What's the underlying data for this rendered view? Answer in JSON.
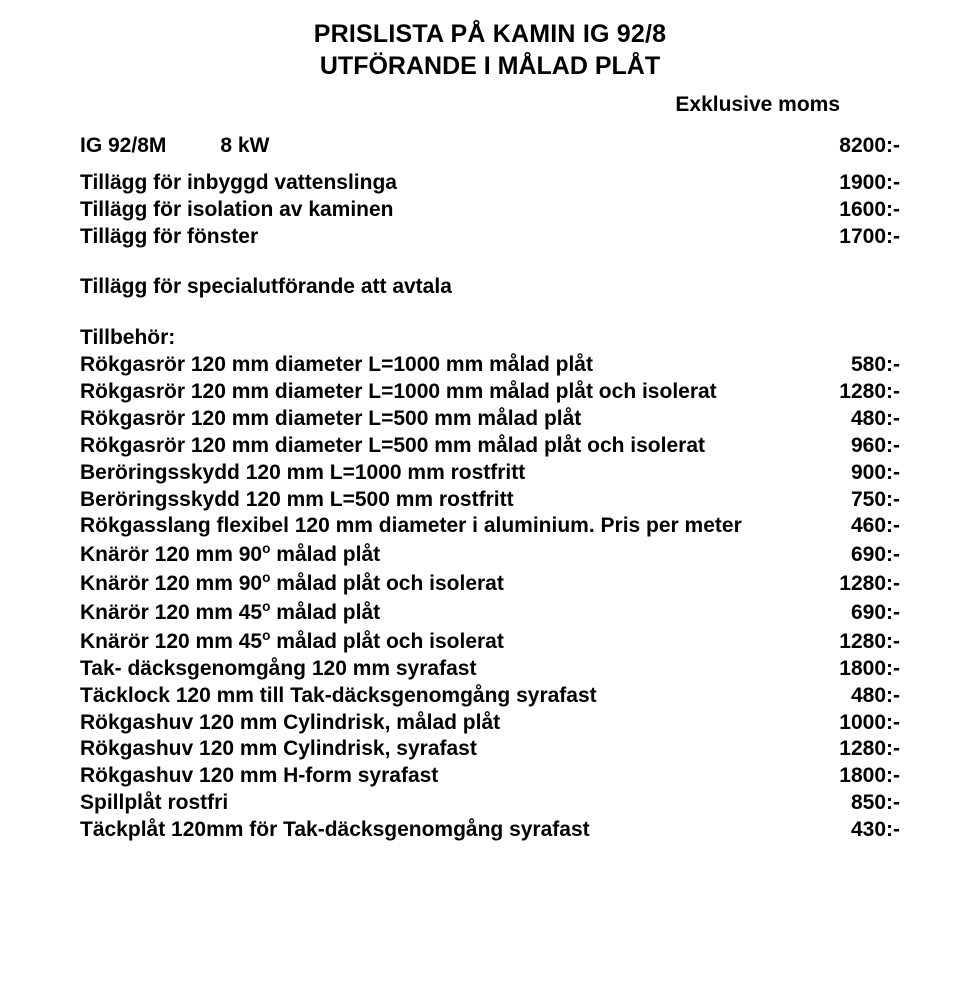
{
  "title_line1": "PRISLISTA PÅ KAMIN IG 92/8",
  "title_line2": "UTFÖRANDE I MÅLAD PLÅT",
  "exklusive": "Exklusive moms",
  "model": {
    "name": "IG 92/8M",
    "power": "8 kW",
    "price": "8200:-"
  },
  "addons": [
    {
      "label": "Tillägg för inbyggd vattenslinga",
      "price": "1900:-"
    },
    {
      "label": "Tillägg för isolation av kaminen",
      "price": "1600:-"
    },
    {
      "label": "Tillägg för fönster",
      "price": "1700:-"
    }
  ],
  "special": "Tillägg för specialutförande att avtala",
  "accessories_header": "Tillbehör:",
  "accessories": [
    {
      "label": "Rökgasrör 120 mm diameter L=1000 mm målad plåt",
      "price": "580:-"
    },
    {
      "label": "Rökgasrör 120 mm diameter L=1000 mm målad plåt och isolerat",
      "price": "1280:-"
    },
    {
      "label": "Rökgasrör 120 mm diameter L=500 mm målad plåt",
      "price": "480:-"
    },
    {
      "label": "Rökgasrör 120 mm diameter L=500 mm målad plåt och isolerat",
      "price": "960:-"
    },
    {
      "label": "Beröringsskydd 120 mm L=1000 mm rostfritt",
      "price": "900:-"
    },
    {
      "label": "Beröringsskydd 120 mm L=500 mm rostfritt",
      "price": "750:-"
    },
    {
      "label": "Rökgasslang flexibel 120 mm diameter i aluminium. Pris per meter",
      "price": "460:-"
    },
    {
      "label_html": "Knärör 120 mm 90<span class=\"sup\">o</span>  målad plåt",
      "price": "690:-"
    },
    {
      "label_html": "Knärör 120 mm 90<span class=\"sup\">o</span>  målad plåt och isolerat",
      "price": "1280:-"
    },
    {
      "label_html": "Knärör 120 mm 45<span class=\"sup\">o</span>  målad plåt",
      "price": "690:-"
    },
    {
      "label_html": "Knärör 120 mm 45<span class=\"sup\">o</span>  målad plåt och isolerat",
      "price": "1280:-"
    },
    {
      "label": "Tak- däcksgenomgång 120 mm syrafast",
      "price": "1800:-"
    },
    {
      "label": "Täcklock 120 mm till Tak-däcksgenomgång syrafast",
      "price": "480:-"
    },
    {
      "label": "Rökgashuv 120 mm Cylindrisk, målad plåt",
      "price": "1000:-"
    },
    {
      "label": "Rökgashuv 120 mm Cylindrisk, syrafast",
      "price": "1280:-"
    },
    {
      "label": "Rökgashuv 120 mm H-form syrafast",
      "price": "1800:-"
    },
    {
      "label": "Spillplåt rostfri",
      "price": "850:-"
    },
    {
      "label": "Täckplåt 120mm för Tak-däcksgenomgång syrafast",
      "price": "430:-"
    }
  ]
}
